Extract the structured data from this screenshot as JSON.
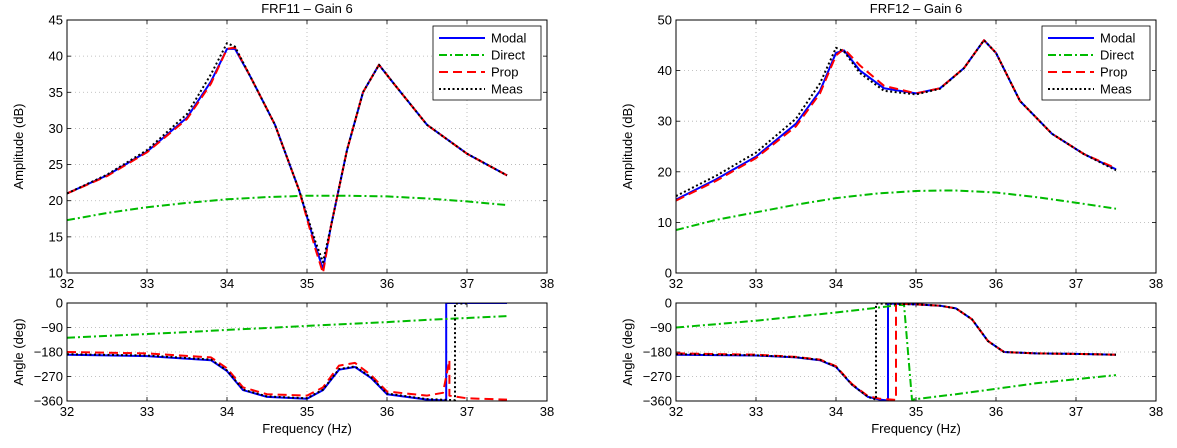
{
  "chart_data": [
    {
      "type": "line",
      "title": "FRF11 – Gain 6",
      "ylabel": "Amplitude (dB)",
      "xlabel": "",
      "xlim": [
        32,
        38
      ],
      "ylim": [
        10,
        45
      ],
      "xticks": [
        32,
        33,
        34,
        35,
        36,
        37,
        38
      ],
      "yticks": [
        10,
        15,
        20,
        25,
        30,
        35,
        40,
        45
      ],
      "grid": true,
      "legend": "top-right",
      "series": [
        {
          "name": "Modal",
          "color": "#0000ff",
          "style": "solid",
          "x": [
            32,
            32.5,
            33,
            33.5,
            33.8,
            34.0,
            34.1,
            34.3,
            34.6,
            34.9,
            35.1,
            35.2,
            35.3,
            35.5,
            35.7,
            35.9,
            36.1,
            36.5,
            37.0,
            37.5
          ],
          "y": [
            21.0,
            23.5,
            26.8,
            31.5,
            36.5,
            41.0,
            41.0,
            37.0,
            30.5,
            21.5,
            14.0,
            10.5,
            16.5,
            27.0,
            35.0,
            38.8,
            36.0,
            30.5,
            26.5,
            23.5
          ]
        },
        {
          "name": "Direct",
          "color": "#00bb00",
          "style": "dashdot",
          "x": [
            32,
            32.5,
            33,
            33.5,
            34,
            34.5,
            35,
            35.5,
            36,
            36.5,
            37,
            37.5
          ],
          "y": [
            17.3,
            18.3,
            19.1,
            19.7,
            20.2,
            20.5,
            20.7,
            20.7,
            20.6,
            20.3,
            19.9,
            19.4
          ]
        },
        {
          "name": "Prop",
          "color": "#ff0000",
          "style": "dashed",
          "x": [
            32,
            32.5,
            33,
            33.5,
            33.8,
            34.0,
            34.1,
            34.3,
            34.6,
            34.9,
            35.1,
            35.2,
            35.3,
            35.5,
            35.7,
            35.9,
            36.1,
            36.5,
            37.0,
            37.5
          ],
          "y": [
            21.0,
            23.4,
            26.7,
            31.3,
            36.2,
            41.0,
            41.2,
            37.0,
            30.5,
            21.5,
            13.5,
            10.0,
            16.5,
            27.0,
            35.0,
            38.8,
            36.0,
            30.5,
            26.5,
            23.5
          ]
        },
        {
          "name": "Meas",
          "color": "#000000",
          "style": "dotted",
          "x": [
            32,
            32.5,
            33,
            33.5,
            33.8,
            34.0,
            34.1,
            34.3,
            34.6,
            34.9,
            35.1,
            35.2,
            35.3,
            35.5,
            35.7,
            35.9,
            36.1,
            36.5,
            37.0,
            37.5
          ],
          "y": [
            21.0,
            23.6,
            27.0,
            32.0,
            37.5,
            41.8,
            41.3,
            37.0,
            30.5,
            21.5,
            14.5,
            11.5,
            16.5,
            27.0,
            35.0,
            38.8,
            36.0,
            30.5,
            26.5,
            23.5
          ]
        }
      ]
    },
    {
      "type": "line",
      "title": "",
      "ylabel": "Angle (deg)",
      "xlabel": "Frequency (Hz)",
      "xlim": [
        32,
        38
      ],
      "ylim": [
        -360,
        0
      ],
      "xticks": [
        32,
        33,
        34,
        35,
        36,
        37,
        38
      ],
      "yticks": [
        0,
        -90,
        -180,
        -270,
        -360
      ],
      "ytick_labels": [
        "0",
        "−90",
        "−180",
        "−270",
        "−360"
      ],
      "grid": true,
      "series": [
        {
          "name": "Modal",
          "color": "#0000ff",
          "style": "solid",
          "x": [
            32,
            33,
            33.8,
            34.0,
            34.2,
            34.5,
            35.0,
            35.2,
            35.4,
            35.6,
            35.8,
            36.0,
            36.5,
            36.74,
            36.74,
            37.0,
            37.5
          ],
          "y": [
            -190,
            -195,
            -210,
            -250,
            -320,
            -345,
            -352,
            -320,
            -245,
            -235,
            -275,
            -335,
            -355,
            -358,
            0,
            0,
            0
          ]
        },
        {
          "name": "Direct",
          "color": "#00bb00",
          "style": "dashdot",
          "x": [
            32,
            32.5,
            33,
            33.5,
            34,
            34.5,
            35,
            35.5,
            36,
            36.5,
            37,
            37.5
          ],
          "y": [
            -128,
            -121,
            -114,
            -107,
            -99,
            -92,
            -84,
            -77,
            -70,
            -62,
            -55,
            -48
          ]
        },
        {
          "name": "Prop",
          "color": "#ff0000",
          "style": "dashed",
          "x": [
            32,
            33,
            33.8,
            34.0,
            34.2,
            34.5,
            35.0,
            35.2,
            35.4,
            35.6,
            35.8,
            36.0,
            36.5,
            36.7,
            36.78,
            36.78,
            37.0,
            37.5
          ],
          "y": [
            -180,
            -185,
            -200,
            -240,
            -310,
            -335,
            -340,
            -310,
            -230,
            -220,
            -265,
            -325,
            -340,
            -330,
            -210,
            -340,
            -350,
            -355
          ]
        },
        {
          "name": "Meas",
          "color": "#000000",
          "style": "dotted",
          "x": [
            32,
            33,
            33.8,
            34.0,
            34.2,
            34.5,
            35.0,
            35.2,
            35.4,
            35.6,
            35.8,
            36.0,
            36.5,
            36.85,
            36.85,
            37.0
          ],
          "y": [
            -188,
            -193,
            -208,
            -248,
            -318,
            -343,
            -350,
            -318,
            -243,
            -233,
            -273,
            -333,
            -353,
            -357,
            -2,
            -2
          ]
        }
      ]
    },
    {
      "type": "line",
      "title": "FRF12 – Gain 6",
      "ylabel": "Amplitude (dB)",
      "xlabel": "",
      "xlim": [
        32,
        38
      ],
      "ylim": [
        0,
        50
      ],
      "xticks": [
        32,
        33,
        34,
        35,
        36,
        37,
        38
      ],
      "yticks": [
        0,
        10,
        20,
        30,
        40,
        50
      ],
      "grid": true,
      "legend": "top-right",
      "series": [
        {
          "name": "Modal",
          "color": "#0000ff",
          "style": "solid",
          "x": [
            32,
            32.5,
            33,
            33.5,
            33.8,
            34.0,
            34.1,
            34.3,
            34.6,
            35.0,
            35.3,
            35.6,
            35.85,
            36.0,
            36.3,
            36.7,
            37.1,
            37.5
          ],
          "y": [
            14.5,
            18.5,
            23.0,
            29.5,
            36.0,
            43.5,
            44.0,
            40.0,
            36.5,
            35.5,
            36.5,
            40.5,
            46.0,
            43.5,
            34.0,
            27.5,
            23.5,
            20.5
          ]
        },
        {
          "name": "Direct",
          "color": "#00bb00",
          "style": "dashdot",
          "x": [
            32,
            32.5,
            33,
            33.5,
            34,
            34.5,
            35,
            35.3,
            35.5,
            36,
            36.5,
            37,
            37.5
          ],
          "y": [
            8.5,
            10.5,
            12.0,
            13.5,
            14.8,
            15.7,
            16.2,
            16.3,
            16.3,
            15.9,
            15.0,
            13.9,
            12.7
          ]
        },
        {
          "name": "Prop",
          "color": "#ff0000",
          "style": "dashed",
          "x": [
            32,
            32.5,
            33,
            33.5,
            33.8,
            34.0,
            34.1,
            34.3,
            34.6,
            35.0,
            35.3,
            35.6,
            35.85,
            36.0,
            36.3,
            36.7,
            37.1,
            37.5
          ],
          "y": [
            14.3,
            18.2,
            22.7,
            29.0,
            35.5,
            43.0,
            44.3,
            41.0,
            37.0,
            35.5,
            36.5,
            40.5,
            46.0,
            43.5,
            34.0,
            27.5,
            23.5,
            20.7
          ]
        },
        {
          "name": "Meas",
          "color": "#000000",
          "style": "dotted",
          "x": [
            32,
            32.5,
            33,
            33.5,
            33.8,
            34.0,
            34.1,
            34.3,
            34.6,
            35.0,
            35.3,
            35.6,
            35.85,
            36.0,
            36.3,
            36.7,
            37.1,
            37.5
          ],
          "y": [
            15.2,
            19.2,
            23.8,
            30.5,
            37.5,
            44.5,
            43.8,
            39.5,
            36.0,
            35.3,
            36.4,
            40.5,
            46.0,
            43.5,
            34.0,
            27.5,
            23.5,
            20.3
          ]
        }
      ]
    },
    {
      "type": "line",
      "title": "",
      "ylabel": "Angle (deg)",
      "xlabel": "Frequency (Hz)",
      "xlim": [
        32,
        38
      ],
      "ylim": [
        -360,
        0
      ],
      "xticks": [
        32,
        33,
        34,
        35,
        36,
        37,
        38
      ],
      "yticks": [
        0,
        -90,
        -180,
        -270,
        -360
      ],
      "ytick_labels": [
        "0",
        "−90",
        "−180",
        "−270",
        "−360"
      ],
      "grid": true,
      "series": [
        {
          "name": "Modal",
          "color": "#0000ff",
          "style": "solid",
          "x": [
            32,
            33,
            33.5,
            33.8,
            34.0,
            34.2,
            34.4,
            34.55,
            34.65,
            34.65,
            35.0,
            35.3,
            35.5,
            35.7,
            35.9,
            36.1,
            36.5,
            37.0,
            37.5
          ],
          "y": [
            -190,
            -193,
            -200,
            -210,
            -235,
            -300,
            -345,
            -355,
            -358,
            -2,
            -5,
            -10,
            -20,
            -60,
            -140,
            -180,
            -185,
            -187,
            -190
          ]
        },
        {
          "name": "Direct",
          "color": "#00bb00",
          "style": "dashdot",
          "x": [
            32,
            32.5,
            33,
            33.5,
            34,
            34.5,
            34.85,
            34.85,
            34.95,
            35.5,
            36,
            36.5,
            37,
            37.5
          ],
          "y": [
            -90,
            -78,
            -65,
            -50,
            -35,
            -18,
            -5,
            -5,
            -355,
            -335,
            -315,
            -295,
            -280,
            -265
          ]
        },
        {
          "name": "Prop",
          "color": "#ff0000",
          "style": "dashed",
          "x": [
            32,
            33,
            33.5,
            33.8,
            34.0,
            34.2,
            34.4,
            34.55,
            34.7,
            34.75,
            34.75,
            35.0,
            35.3,
            35.5,
            35.7,
            35.9,
            36.1,
            36.5,
            37.0,
            37.5
          ],
          "y": [
            -185,
            -190,
            -198,
            -208,
            -232,
            -298,
            -342,
            -352,
            -355,
            -356,
            -2,
            -5,
            -10,
            -20,
            -60,
            -140,
            -180,
            -185,
            -187,
            -190
          ]
        },
        {
          "name": "Meas",
          "color": "#000000",
          "style": "dotted",
          "x": [
            32,
            33,
            33.5,
            33.8,
            34.0,
            34.2,
            34.4,
            34.5,
            34.5,
            35.0,
            35.3,
            35.5,
            35.7,
            35.9,
            36.1,
            36.5,
            37.0,
            37.5
          ],
          "y": [
            -188,
            -192,
            -199,
            -209,
            -234,
            -300,
            -345,
            -355,
            -2,
            -5,
            -10,
            -20,
            -60,
            -140,
            -180,
            -185,
            -187,
            -190
          ]
        }
      ]
    }
  ]
}
